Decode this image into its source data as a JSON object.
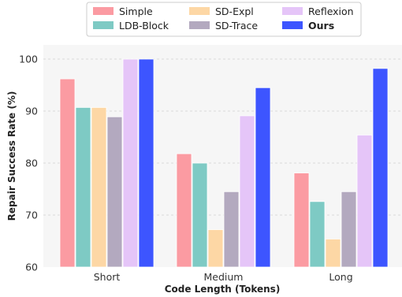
{
  "chart_data": {
    "type": "bar",
    "xlabel": "Code Length (Tokens)",
    "ylabel": "Repair Success Rate (%)",
    "ylim": [
      60,
      102
    ],
    "yticks": [
      60,
      70,
      80,
      90,
      100
    ],
    "grid": true,
    "legend_position": "top-center",
    "categories": [
      "Short",
      "Medium",
      "Long"
    ],
    "series": [
      {
        "name": "Simple",
        "color": "#fb9ba2",
        "values": [
          96.2,
          81.8,
          78.1
        ]
      },
      {
        "name": "LDB-Block",
        "color": "#7ecac4",
        "values": [
          90.7,
          80.0,
          72.6
        ]
      },
      {
        "name": "SD-Expl",
        "color": "#fdd7a5",
        "values": [
          90.7,
          67.2,
          65.4
        ]
      },
      {
        "name": "SD-Trace",
        "color": "#b3a9bf",
        "values": [
          88.9,
          74.5,
          74.5
        ]
      },
      {
        "name": "Reflexion",
        "color": "#e5c5f8",
        "values": [
          100.0,
          89.1,
          85.4
        ]
      },
      {
        "name": "Ours",
        "color": "#3d55ff",
        "values": [
          100.0,
          94.5,
          98.2
        ],
        "bold": true
      }
    ]
  }
}
